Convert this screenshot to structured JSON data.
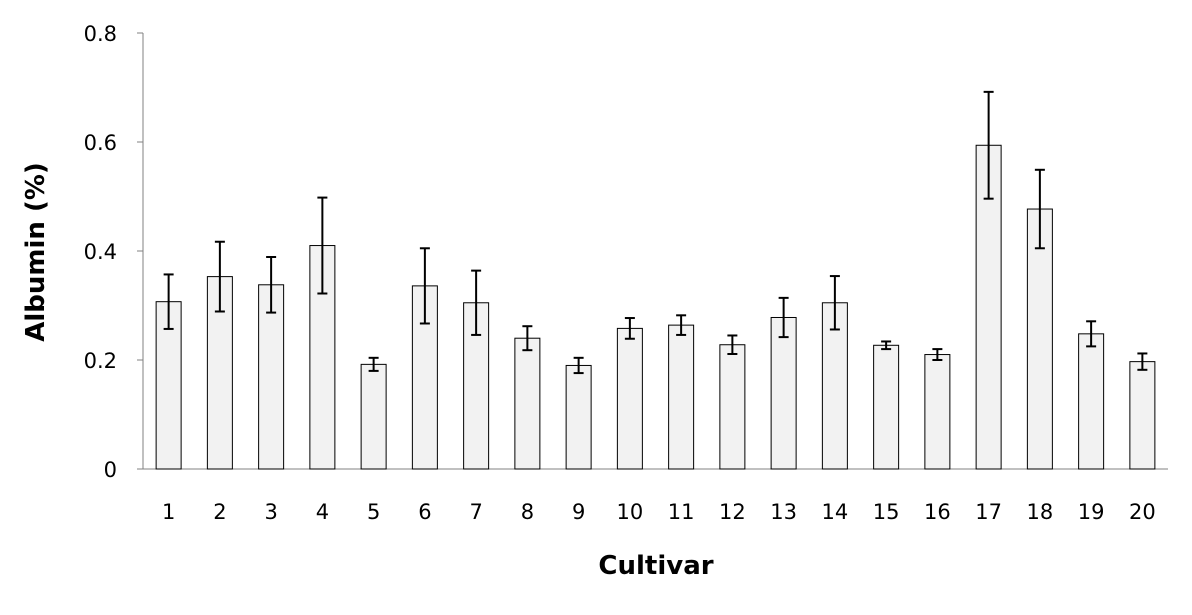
{
  "chart_data": {
    "type": "bar",
    "xlabel": "Cultivar",
    "ylabel": "Albumin (%)",
    "categories": [
      "1",
      "2",
      "3",
      "4",
      "5",
      "6",
      "7",
      "8",
      "9",
      "10",
      "11",
      "12",
      "13",
      "14",
      "15",
      "16",
      "17",
      "18",
      "19",
      "20"
    ],
    "values": [
      0.307,
      0.353,
      0.338,
      0.41,
      0.192,
      0.336,
      0.305,
      0.24,
      0.19,
      0.258,
      0.264,
      0.228,
      0.278,
      0.305,
      0.227,
      0.21,
      0.594,
      0.477,
      0.248,
      0.197
    ],
    "errors": [
      0.05,
      0.064,
      0.051,
      0.088,
      0.012,
      0.069,
      0.059,
      0.022,
      0.014,
      0.019,
      0.018,
      0.017,
      0.036,
      0.049,
      0.007,
      0.01,
      0.098,
      0.072,
      0.023,
      0.015
    ],
    "ylim": [
      0,
      0.8
    ],
    "yticks": [
      "0",
      "0.2",
      "0.4",
      "0.6",
      "0.8"
    ],
    "ytick_values": [
      0,
      0.2,
      0.4,
      0.6,
      0.8
    ],
    "grid": false,
    "legend": "none",
    "colors": {
      "bar_fill": "#f2f2f2",
      "bar_stroke": "#000000",
      "axis": "#808080",
      "error_bar": "#000000"
    }
  }
}
